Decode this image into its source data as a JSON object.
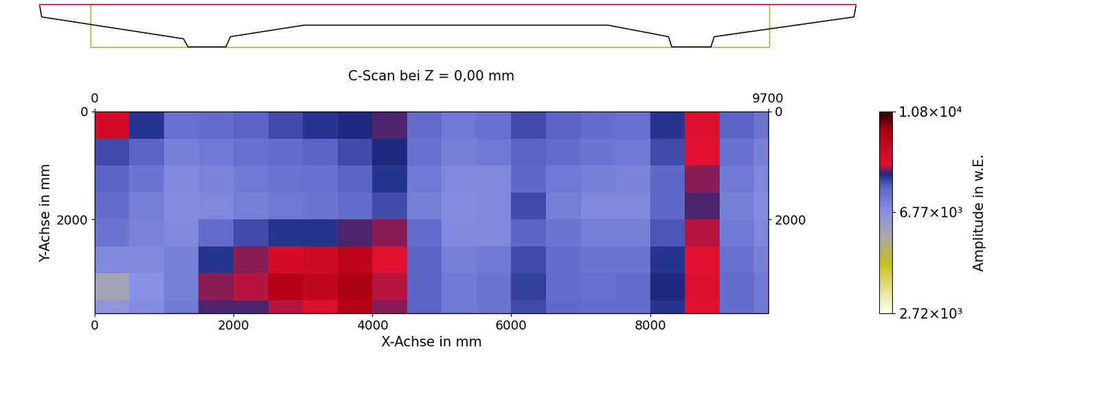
{
  "chart_data": {
    "type": "heatmap",
    "title": "C-Scan bei Z = 0,00 mm",
    "x_label": "X-Achse in mm",
    "y_label": "Y-Achse in mm",
    "xlim": [
      0,
      9700
    ],
    "xticks": [
      0,
      2000,
      4000,
      6000,
      8000
    ],
    "x2ticks": [
      0,
      9700
    ],
    "ylim": [
      3750,
      0
    ],
    "yticks": [
      0,
      2000
    ],
    "y2lim": [
      3750,
      0
    ],
    "y2ticks": [
      0,
      2000
    ],
    "x_edges": [
      0,
      500,
      1000,
      1500,
      2000,
      2500,
      3000,
      3500,
      4000,
      4500,
      5000,
      5500,
      6000,
      6500,
      7000,
      7500,
      8000,
      8500,
      9000,
      9500,
      9700
    ],
    "y_edges": [
      0,
      500,
      1000,
      1500,
      2000,
      2500,
      3000,
      3500,
      3750
    ],
    "cells": [
      [
        9000,
        8200,
        7500,
        7600,
        7800,
        8000,
        8200,
        8300,
        8400,
        7600,
        7300,
        7500,
        8000,
        7800,
        7600,
        7500,
        8200,
        8800,
        7800,
        7400
      ],
      [
        8000,
        7800,
        7200,
        7300,
        7500,
        7600,
        7800,
        8000,
        8300,
        7500,
        7200,
        7300,
        7800,
        7600,
        7400,
        7300,
        8000,
        8700,
        7500,
        7200
      ],
      [
        7800,
        7400,
        7000,
        7100,
        7300,
        7400,
        7500,
        7800,
        8200,
        7300,
        7000,
        7000,
        7700,
        7300,
        7200,
        7100,
        7700,
        8500,
        7300,
        7000
      ],
      [
        7600,
        7200,
        6900,
        7000,
        7200,
        7300,
        7400,
        7600,
        8000,
        7200,
        6900,
        7000,
        8000,
        7200,
        7000,
        7000,
        7700,
        8400,
        7200,
        6900
      ],
      [
        7400,
        7100,
        7000,
        7600,
        8000,
        8200,
        8200,
        8400,
        8500,
        7600,
        7000,
        7000,
        7800,
        7400,
        7200,
        7200,
        7900,
        8600,
        7300,
        7000
      ],
      [
        7000,
        7000,
        7200,
        8200,
        8500,
        9000,
        9200,
        9600,
        8700,
        7800,
        7200,
        7300,
        8000,
        7600,
        7400,
        7400,
        8200,
        8700,
        7500,
        7200
      ],
      [
        6000,
        6800,
        7200,
        8500,
        8600,
        9800,
        9500,
        10000,
        8600,
        7800,
        7300,
        7400,
        8100,
        7600,
        7500,
        7600,
        8300,
        8800,
        7600,
        7300
      ],
      [
        6600,
        6900,
        7300,
        8400,
        8400,
        8600,
        8800,
        9800,
        8500,
        7800,
        7300,
        7400,
        8000,
        7700,
        7600,
        7600,
        8200,
        8700,
        7600,
        7300
      ]
    ],
    "colorbar": {
      "lim": [
        2720,
        10800
      ],
      "ticks": [
        {
          "value": 2720,
          "label": "2.72×10³"
        },
        {
          "value": 6770,
          "label": "6.77×10³"
        },
        {
          "value": 10800,
          "label": "1.08×10⁴"
        }
      ],
      "label": "Amplitude in w.E."
    }
  }
}
